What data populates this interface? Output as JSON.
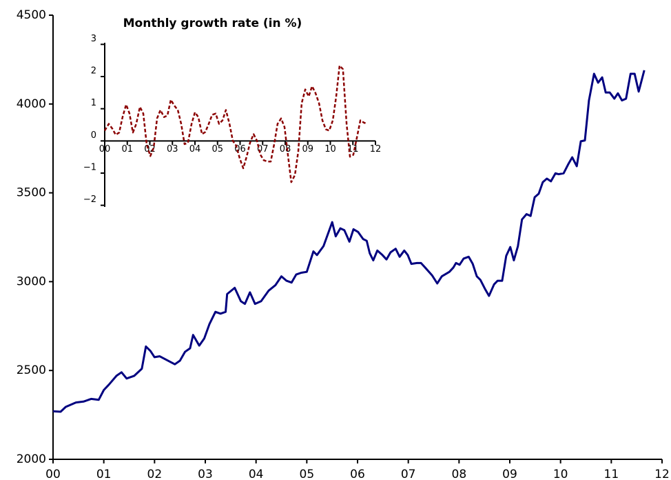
{
  "chart_data": [
    {
      "type": "line",
      "xlim": [
        0,
        12
      ],
      "xticks": [
        {
          "value": 0,
          "label": "00"
        },
        {
          "value": 1,
          "label": "01"
        },
        {
          "value": 2,
          "label": "02"
        },
        {
          "value": 3,
          "label": "03"
        },
        {
          "value": 4,
          "label": "04"
        },
        {
          "value": 5,
          "label": "05"
        },
        {
          "value": 6,
          "label": "06"
        },
        {
          "value": 7,
          "label": "07"
        },
        {
          "value": 8,
          "label": "08"
        },
        {
          "value": 9,
          "label": "09"
        },
        {
          "value": 10,
          "label": "10"
        },
        {
          "value": 11,
          "label": "11"
        },
        {
          "value": 12,
          "label": "12"
        }
      ],
      "ylim": [
        2000,
        4500
      ],
      "yticks": [
        2000,
        2500,
        3000,
        3500,
        4000,
        4500
      ],
      "series": [
        {
          "color": "#000080",
          "x": [
            0,
            0.15,
            0.25,
            0.45,
            0.6,
            0.75,
            0.9,
            1.0,
            1.1,
            1.25,
            1.35,
            1.45,
            1.6,
            1.75,
            1.83,
            1.92,
            2.0,
            2.1,
            2.3,
            2.4,
            2.5,
            2.6,
            2.7,
            2.76,
            2.88,
            2.98,
            3.08,
            3.2,
            3.3,
            3.4,
            3.43,
            3.58,
            3.7,
            3.78,
            3.88,
            3.98,
            4.1,
            4.25,
            4.38,
            4.5,
            4.6,
            4.7,
            4.79,
            4.89,
            5.0,
            5.13,
            5.2,
            5.33,
            5.5,
            5.57,
            5.66,
            5.74,
            5.84,
            5.92,
            6.01,
            6.11,
            6.18,
            6.24,
            6.31,
            6.39,
            6.49,
            6.57,
            6.65,
            6.75,
            6.83,
            6.92,
            6.99,
            7.06,
            7.17,
            7.25,
            7.33,
            7.47,
            7.57,
            7.66,
            7.81,
            7.89,
            7.94,
            8.01,
            8.09,
            8.19,
            8.27,
            8.35,
            8.42,
            8.51,
            8.59,
            8.69,
            8.76,
            8.85,
            8.93,
            9.01,
            9.08,
            9.16,
            9.24,
            9.33,
            9.41,
            9.49,
            9.57,
            9.65,
            9.73,
            9.81,
            9.9,
            9.96,
            10.06,
            10.15,
            10.23,
            10.32,
            10.4,
            10.48,
            10.56,
            10.66,
            10.74,
            10.82,
            10.89,
            10.97,
            11.06,
            11.13,
            11.21,
            11.29,
            11.38,
            11.46,
            11.54,
            11.65
          ],
          "values": [
            2270,
            2268,
            2295,
            2320,
            2325,
            2340,
            2335,
            2390,
            2420,
            2470,
            2490,
            2455,
            2470,
            2510,
            2635,
            2610,
            2575,
            2580,
            2550,
            2535,
            2555,
            2605,
            2625,
            2700,
            2640,
            2680,
            2760,
            2830,
            2820,
            2830,
            2930,
            2965,
            2890,
            2875,
            2940,
            2875,
            2890,
            2950,
            2980,
            3030,
            3005,
            2995,
            3040,
            3050,
            3055,
            3170,
            3150,
            3200,
            3335,
            3255,
            3300,
            3290,
            3225,
            3295,
            3280,
            3240,
            3230,
            3160,
            3120,
            3175,
            3150,
            3125,
            3165,
            3185,
            3140,
            3175,
            3150,
            3100,
            3105,
            3105,
            3080,
            3035,
            2990,
            3030,
            3055,
            3080,
            3105,
            3095,
            3130,
            3140,
            3100,
            3030,
            3010,
            2960,
            2920,
            2985,
            3005,
            3005,
            3145,
            3195,
            3120,
            3200,
            3350,
            3380,
            3370,
            3475,
            3495,
            3560,
            3580,
            3565,
            3610,
            3605,
            3610,
            3660,
            3700,
            3650,
            3790,
            3795,
            4020,
            4170,
            4120,
            4150,
            4065,
            4065,
            4030,
            4060,
            4020,
            4030,
            4170,
            4170,
            4070,
            4190
          ]
        }
      ]
    },
    {
      "type": "line",
      "title": "Monthly growth rate (in %)",
      "dashed": true,
      "xlim": [
        0,
        12
      ],
      "xticks": [
        {
          "value": 0,
          "label": "00"
        },
        {
          "value": 1,
          "label": "01"
        },
        {
          "value": 2,
          "label": "02"
        },
        {
          "value": 3,
          "label": "03"
        },
        {
          "value": 4,
          "label": "04"
        },
        {
          "value": 5,
          "label": "05"
        },
        {
          "value": 6,
          "label": "06"
        },
        {
          "value": 7,
          "label": "07"
        },
        {
          "value": 8,
          "label": "08"
        },
        {
          "value": 9,
          "label": "09"
        },
        {
          "value": 10,
          "label": "10"
        },
        {
          "value": 11,
          "label": "11"
        },
        {
          "value": 12,
          "label": "12"
        }
      ],
      "ylim": [
        -2.05,
        3.05
      ],
      "yticks": [
        {
          "value": -2,
          "label": "−2"
        },
        {
          "value": -1,
          "label": "−1"
        },
        0,
        1,
        2,
        3
      ],
      "series": [
        {
          "color": "#8b0000",
          "x": [
            0,
            0.18,
            0.34,
            0.49,
            0.64,
            0.79,
            0.95,
            1.1,
            1.25,
            1.4,
            1.56,
            1.71,
            1.86,
            2.02,
            2.17,
            2.32,
            2.47,
            2.63,
            2.78,
            2.93,
            3.08,
            3.24,
            3.39,
            3.54,
            3.69,
            3.85,
            4.0,
            4.15,
            4.31,
            4.46,
            4.61,
            4.76,
            4.92,
            5.07,
            5.22,
            5.37,
            5.53,
            5.68,
            5.83,
            5.98,
            6.14,
            6.29,
            6.44,
            6.6,
            6.75,
            6.9,
            7.05,
            7.21,
            7.36,
            7.51,
            7.66,
            7.82,
            7.97,
            8.12,
            8.27,
            8.43,
            8.58,
            8.73,
            8.89,
            9.04,
            9.19,
            9.34,
            9.5,
            9.65,
            9.8,
            9.95,
            10.11,
            10.26,
            10.41,
            10.56,
            10.72,
            10.87,
            11.02,
            11.18,
            11.33,
            11.48,
            11.63
          ],
          "values": [
            0.32,
            0.53,
            0.38,
            0.19,
            0.26,
            0.74,
            1.13,
            0.85,
            0.26,
            0.53,
            1.06,
            0.85,
            -0.1,
            -0.47,
            -0.21,
            0.7,
            0.96,
            0.74,
            0.79,
            1.28,
            1.1,
            0.96,
            0.53,
            -0.1,
            -0.06,
            0.53,
            0.89,
            0.74,
            0.21,
            0.28,
            0.53,
            0.81,
            0.85,
            0.53,
            0.64,
            0.96,
            0.53,
            0,
            -0.15,
            -0.53,
            -0.85,
            -0.49,
            -0.06,
            0.21,
            0,
            -0.43,
            -0.6,
            -0.64,
            -0.64,
            -0.1,
            0.53,
            0.7,
            0.43,
            -0.43,
            -1.28,
            -1.06,
            -0.32,
            1.17,
            1.6,
            1.38,
            1.7,
            1.49,
            1.17,
            0.64,
            0.36,
            0.32,
            0.64,
            1.38,
            2.34,
            2.23,
            0.53,
            -0.49,
            -0.43,
            0.11,
            0.64,
            0.57,
            0.53
          ]
        }
      ]
    }
  ]
}
